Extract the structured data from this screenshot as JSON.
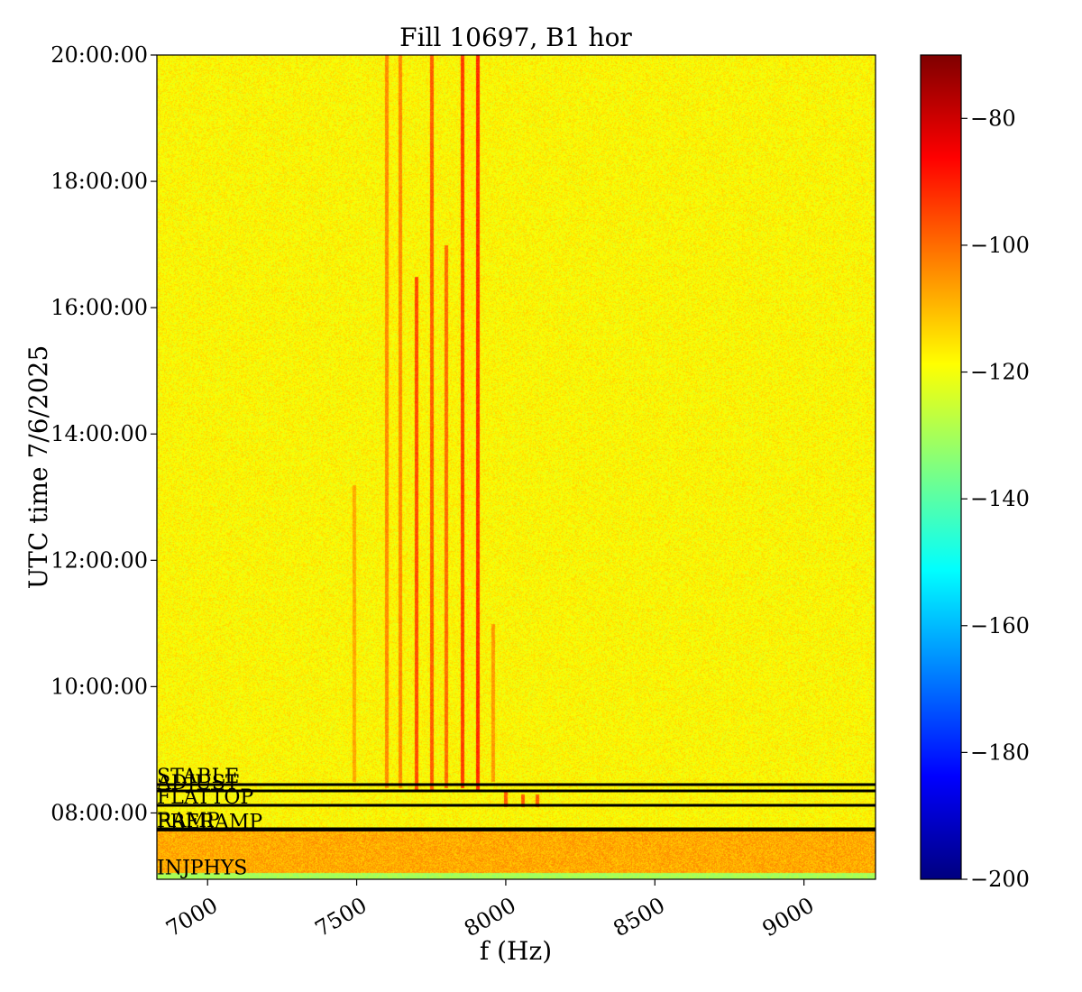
{
  "chart_data": {
    "type": "heatmap",
    "title": "Fill 10697, B1 hor",
    "xlabel": "f (Hz)",
    "ylabel": "UTC time 7/6/2025",
    "xlim": [
      6830,
      9240
    ],
    "ylim_hours": [
      6.95,
      20.0
    ],
    "x_ticks": [
      {
        "value": 7000,
        "label": "7000"
      },
      {
        "value": 7500,
        "label": "7500"
      },
      {
        "value": 8000,
        "label": "8000"
      },
      {
        "value": 8500,
        "label": "8500"
      },
      {
        "value": 9000,
        "label": "9000"
      }
    ],
    "y_ticks": [
      {
        "value": 8,
        "label": "08:00:00"
      },
      {
        "value": 10,
        "label": "10:00:00"
      },
      {
        "value": 12,
        "label": "12:00:00"
      },
      {
        "value": 14,
        "label": "14:00:00"
      },
      {
        "value": 16,
        "label": "16:00:00"
      },
      {
        "value": 18,
        "label": "18:00:00"
      },
      {
        "value": 20,
        "label": "20:00:00"
      }
    ],
    "colorbar": {
      "range": [
        -200,
        -70
      ],
      "colormap": "jet",
      "ticks": [
        {
          "value": -80,
          "label": "−80"
        },
        {
          "value": -100,
          "label": "−100"
        },
        {
          "value": -120,
          "label": "−120"
        },
        {
          "value": -140,
          "label": "−140"
        },
        {
          "value": -160,
          "label": "−160"
        },
        {
          "value": -180,
          "label": "−180"
        },
        {
          "value": -200,
          "label": "−200"
        }
      ]
    },
    "background_level_db": -118,
    "beam_mode_markers": [
      {
        "label": "INJPHYS",
        "time_hours": 7.0,
        "line": false
      },
      {
        "label": "RAMP",
        "time_hours": 7.75,
        "line": true
      },
      {
        "label": "PRERAMP",
        "time_hours": 7.73,
        "line": true
      },
      {
        "label": "FLATTOP",
        "time_hours": 8.12,
        "line": true
      },
      {
        "label": "ADJUST",
        "time_hours": 8.35,
        "line": true
      },
      {
        "label": "STABLE",
        "time_hours": 8.45,
        "line": true
      }
    ],
    "spectral_lines": [
      {
        "freq_hz": 7490,
        "start_hours": 8.5,
        "end_hours": 13.2,
        "level_db": -108
      },
      {
        "freq_hz": 7600,
        "start_hours": 8.4,
        "end_hours": 20.0,
        "level_db": -104
      },
      {
        "freq_hz": 7645,
        "start_hours": 8.4,
        "end_hours": 20.0,
        "level_db": -104
      },
      {
        "freq_hz": 7700,
        "start_hours": 8.35,
        "end_hours": 16.5,
        "level_db": -96
      },
      {
        "freq_hz": 7750,
        "start_hours": 8.35,
        "end_hours": 20.0,
        "level_db": -98
      },
      {
        "freq_hz": 7800,
        "start_hours": 8.4,
        "end_hours": 17.0,
        "level_db": -100
      },
      {
        "freq_hz": 7855,
        "start_hours": 8.4,
        "end_hours": 20.0,
        "level_db": -94
      },
      {
        "freq_hz": 7905,
        "start_hours": 8.35,
        "end_hours": 20.0,
        "level_db": -92
      },
      {
        "freq_hz": 7955,
        "start_hours": 8.5,
        "end_hours": 11.0,
        "level_db": -106
      },
      {
        "freq_hz": 8000,
        "start_hours": 8.1,
        "end_hours": 8.35,
        "level_db": -98
      },
      {
        "freq_hz": 8055,
        "start_hours": 8.1,
        "end_hours": 8.3,
        "level_db": -98
      },
      {
        "freq_hz": 8105,
        "start_hours": 8.1,
        "end_hours": 8.3,
        "level_db": -98
      }
    ],
    "low_time_band": {
      "start_hours": 7.05,
      "end_hours": 7.75,
      "level_db": -108
    }
  }
}
